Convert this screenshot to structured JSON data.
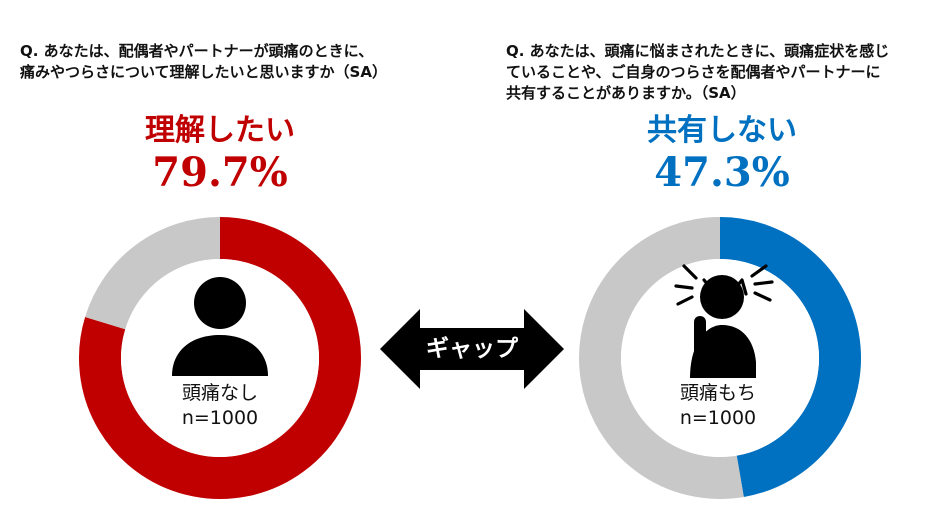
{
  "colors": {
    "left_accent": "#c00000",
    "right_accent": "#0070c0",
    "track": "#c8c8c8",
    "arrow": "#000000",
    "icon": "#000000"
  },
  "questions": {
    "left": "Q. あなたは、配偶者やパートナーが頭痛のときに、\n痛みやつらさについて理解したいと思いますか（SA）",
    "right": "Q. あなたは、頭痛に悩まされたときに、頭痛症状を感じ\nていることや、ご自身のつらさを配偶者やパートナーに\n共有することがありますか。（SA）"
  },
  "gap_label": "ギャップ",
  "icons": {
    "left": "person-icon",
    "right": "headache-person-icon"
  },
  "chart_data": [
    {
      "type": "pie",
      "variant": "donut",
      "title": "理解したい",
      "headline_value": "79.7%",
      "center_label": "頭痛なし",
      "n_label": "n=1000",
      "slices": [
        {
          "label": "理解したい",
          "value": 79.7,
          "color": "#c00000"
        },
        {
          "label": "",
          "value": 20.3,
          "color": "#c8c8c8"
        }
      ]
    },
    {
      "type": "pie",
      "variant": "donut",
      "title": "共有しない",
      "headline_value": "47.3%",
      "center_label": "頭痛もち",
      "n_label": "n=1000",
      "slices": [
        {
          "label": "共有しない",
          "value": 47.3,
          "color": "#0070c0"
        },
        {
          "label": "",
          "value": 52.7,
          "color": "#c8c8c8"
        }
      ]
    }
  ]
}
